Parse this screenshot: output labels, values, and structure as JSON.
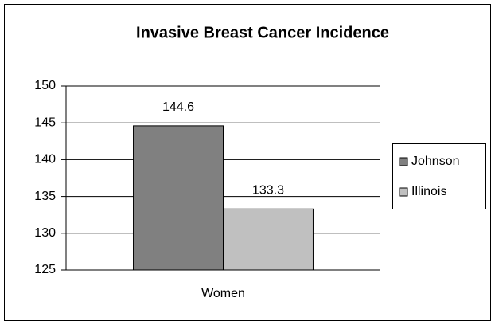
{
  "chart_data": {
    "type": "bar",
    "title": "Invasive Breast Cancer Incidence",
    "categories": [
      "Women"
    ],
    "series": [
      {
        "name": "Johnson",
        "color": "#808080",
        "values": [
          144.6
        ]
      },
      {
        "name": "Illinois",
        "color": "#c0c0c0",
        "values": [
          133.3
        ]
      }
    ],
    "ylim": [
      125,
      150
    ],
    "yticks": [
      125,
      130,
      135,
      140,
      145,
      150
    ],
    "grid": true,
    "legend": "right"
  }
}
